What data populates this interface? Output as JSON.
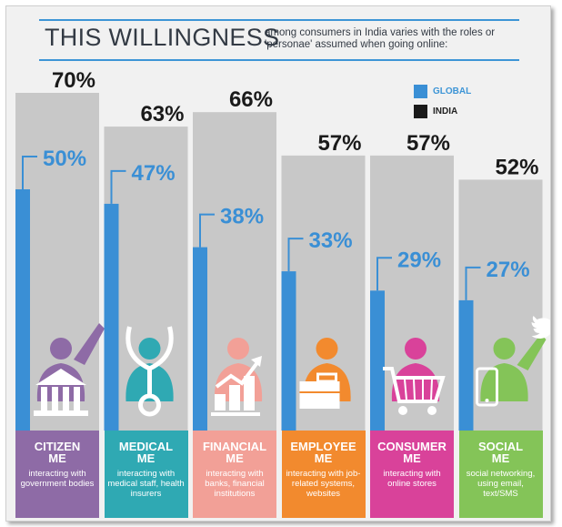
{
  "header": {
    "title": "THIS WILLINGNESS",
    "subtitle": "among consumers in India varies with the roles or 'personae' assumed when going online:"
  },
  "legend": {
    "global_label": "GLOBAL",
    "india_label": "INDIA"
  },
  "colors": {
    "global": "#3a8fd5",
    "india_bar": "#c8c8c8",
    "india_text": "#1a1a1a",
    "global_text": "#3a8fd5",
    "title": "#333a44",
    "rule": "#3d95d6"
  },
  "chart_data": {
    "type": "bar",
    "categories": [
      "CITIZEN ME",
      "MEDICAL ME",
      "FINANCIAL ME",
      "EMPLOYEE ME",
      "CONSUMER ME",
      "SOCIAL ME"
    ],
    "series": [
      {
        "name": "GLOBAL",
        "values": [
          50,
          47,
          38,
          33,
          29,
          27
        ]
      },
      {
        "name": "INDIA",
        "values": [
          70,
          63,
          66,
          57,
          57,
          52
        ]
      }
    ],
    "value_labels": {
      "GLOBAL": [
        "50%",
        "47%",
        "38%",
        "33%",
        "29%",
        "27%"
      ],
      "INDIA": [
        "70%",
        "63%",
        "66%",
        "57%",
        "57%",
        "52%"
      ]
    },
    "title": "THIS WILLINGNESS",
    "xlabel": "",
    "ylabel": "",
    "ylim": [
      0,
      70
    ],
    "legend_position": "top-right",
    "grid": false
  },
  "categories": [
    {
      "line1": "CITIZEN",
      "line2": "ME",
      "desc": "interacting with government bodies",
      "color": "#8e6ba6",
      "icon": "government-building-icon"
    },
    {
      "line1": "MEDICAL",
      "line2": "ME",
      "desc": "interacting with medical staff, health insurers",
      "color": "#2fa9b3",
      "icon": "stethoscope-icon"
    },
    {
      "line1": "FINANCIAL",
      "line2": "ME",
      "desc": "interacting with banks, financial institutions",
      "color": "#f2a097",
      "icon": "rising-chart-icon"
    },
    {
      "line1": "EMPLOYEE",
      "line2": "ME",
      "desc": "interacting with job-related systems, websites",
      "color": "#f28a2e",
      "icon": "briefcase-icon"
    },
    {
      "line1": "CONSUMER",
      "line2": "ME",
      "desc": "interacting with online stores",
      "color": "#d9429a",
      "icon": "shopping-cart-icon"
    },
    {
      "line1": "SOCIAL",
      "line2": "ME",
      "desc": "social networking, using email, text/SMS",
      "color": "#84c458",
      "icon": "mobile-phone-icon"
    }
  ]
}
